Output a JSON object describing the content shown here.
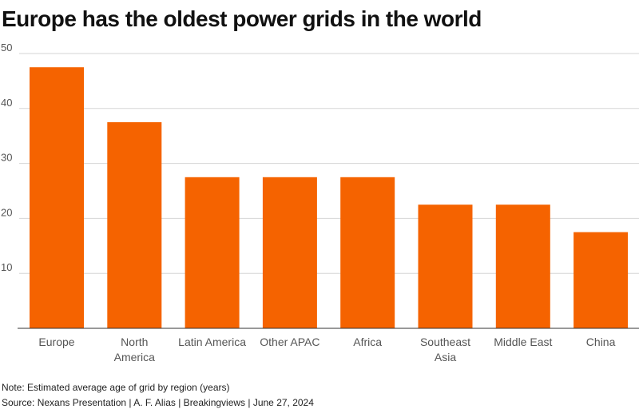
{
  "title": "Europe has the oldest power grids in the world",
  "note": "Note: Estimated average age of grid by region (years)",
  "source": "Source: Nexans Presentation | A. F. Alias | Breakingviews | June 27, 2024",
  "colors": {
    "bar": "#f56300",
    "grid": "#d6d6d6",
    "axis": "#333333",
    "tick_text": "#555555"
  },
  "chart_data": {
    "type": "bar",
    "categories": [
      [
        "Europe"
      ],
      [
        "North",
        "America"
      ],
      [
        "Latin America"
      ],
      [
        "Other APAC"
      ],
      [
        "Africa"
      ],
      [
        "Southeast",
        "Asia"
      ],
      [
        "Middle East"
      ],
      [
        "China"
      ]
    ],
    "values": [
      47.5,
      37.5,
      27.5,
      27.5,
      27.5,
      22.5,
      22.5,
      17.5
    ],
    "yticks": [
      10,
      20,
      30,
      40,
      50
    ],
    "ylim": [
      0,
      50
    ],
    "grid": true,
    "legend": "none"
  }
}
